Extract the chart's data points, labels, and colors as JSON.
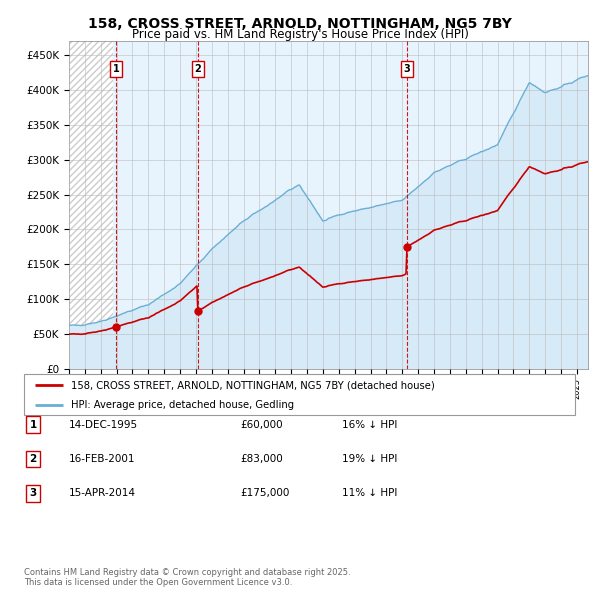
{
  "title": "158, CROSS STREET, ARNOLD, NOTTINGHAM, NG5 7BY",
  "subtitle": "Price paid vs. HM Land Registry's House Price Index (HPI)",
  "ylabel_ticks": [
    "£0",
    "£50K",
    "£100K",
    "£150K",
    "£200K",
    "£250K",
    "£300K",
    "£350K",
    "£400K",
    "£450K"
  ],
  "ytick_values": [
    0,
    50000,
    100000,
    150000,
    200000,
    250000,
    300000,
    350000,
    400000,
    450000
  ],
  "ylim": [
    0,
    470000
  ],
  "xlim_start": 1993.0,
  "xlim_end": 2025.7,
  "purchases": [
    {
      "year": 1995.96,
      "price": 60000,
      "label": "1"
    },
    {
      "year": 2001.12,
      "price": 83000,
      "label": "2"
    },
    {
      "year": 2014.29,
      "price": 175000,
      "label": "3"
    }
  ],
  "legend_property_label": "158, CROSS STREET, ARNOLD, NOTTINGHAM, NG5 7BY (detached house)",
  "legend_hpi_label": "HPI: Average price, detached house, Gedling",
  "table_rows": [
    {
      "num": "1",
      "date": "14-DEC-1995",
      "price": "£60,000",
      "hpi": "16% ↓ HPI"
    },
    {
      "num": "2",
      "date": "16-FEB-2001",
      "price": "£83,000",
      "hpi": "19% ↓ HPI"
    },
    {
      "num": "3",
      "date": "15-APR-2014",
      "price": "£175,000",
      "hpi": "11% ↓ HPI"
    }
  ],
  "footer": "Contains HM Land Registry data © Crown copyright and database right 2025.\nThis data is licensed under the Open Government Licence v3.0.",
  "hpi_line_color": "#6aaed6",
  "hpi_fill_color": "#d6eaf8",
  "property_color": "#cc0000",
  "dashed_line_color": "#cc0000",
  "background_color": "#ffffff",
  "plot_bg_color": "#e8f4fd",
  "grid_color": "#bbbbbb",
  "hatch_color": "#cccccc"
}
